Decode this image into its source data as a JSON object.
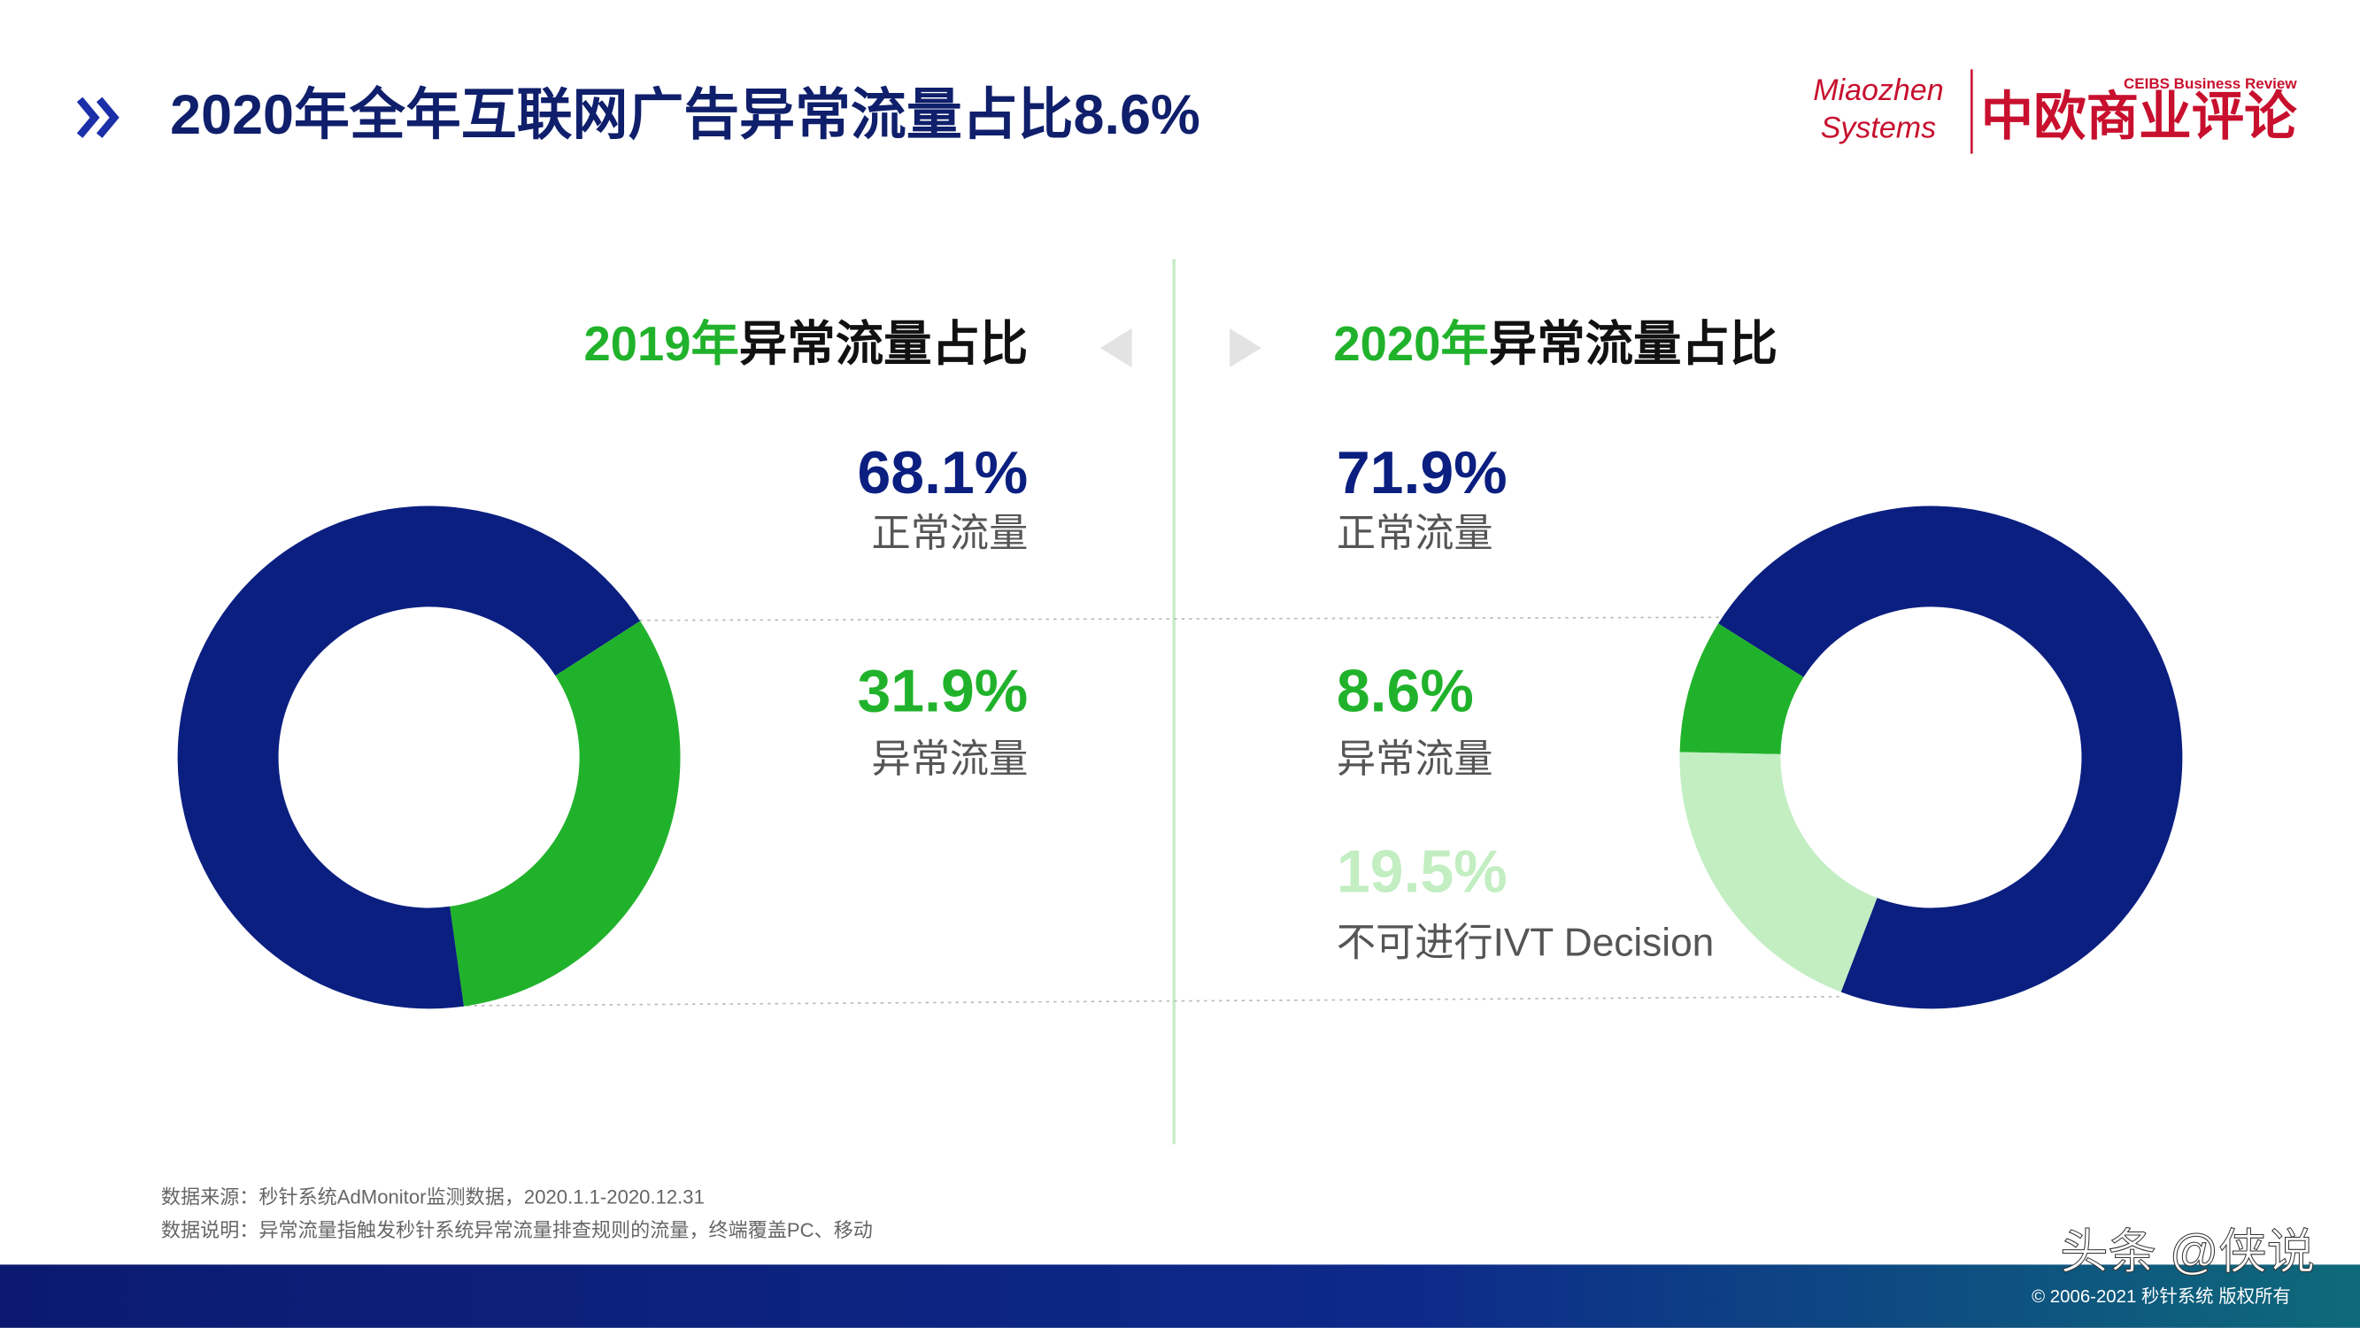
{
  "header": {
    "title": "2020年全年互联网广告异常流量占比8.6%"
  },
  "logos": {
    "miaozhen": [
      "Miaozhen",
      "Systems"
    ],
    "ceibs_en": "CEIBS Business Review",
    "ceibs_cn": "中欧商业评论"
  },
  "chart_data": [
    {
      "type": "pie",
      "donut": true,
      "title": [
        "2019年",
        "异常流量占比"
      ],
      "categories": [
        "正常流量",
        "异常流量"
      ],
      "values": [
        68.1,
        31.9
      ],
      "value_labels": [
        "68.1%",
        "31.9%"
      ],
      "colors": [
        "#0b1f80",
        "#21b22b"
      ]
    },
    {
      "type": "pie",
      "donut": true,
      "title": [
        "2020年",
        "异常流量占比"
      ],
      "categories": [
        "正常流量",
        "异常流量",
        "不可进行IVT Decision"
      ],
      "values": [
        71.9,
        8.6,
        19.5
      ],
      "value_labels": [
        "71.9%",
        "8.6%",
        "19.5%"
      ],
      "colors": [
        "#0b1f80",
        "#21b22b",
        "#c2eec2"
      ]
    }
  ],
  "footnotes": [
    "数据来源：秒针系统AdMonitor监测数据，2020.1.1-2020.12.31",
    "数据说明：异常流量指触发秒针系统异常流量排查规则的流量，终端覆盖PC、移动"
  ],
  "watermark": "头条 @侠说",
  "copyright": "© 2006-2021 秒针系统 版权所有"
}
